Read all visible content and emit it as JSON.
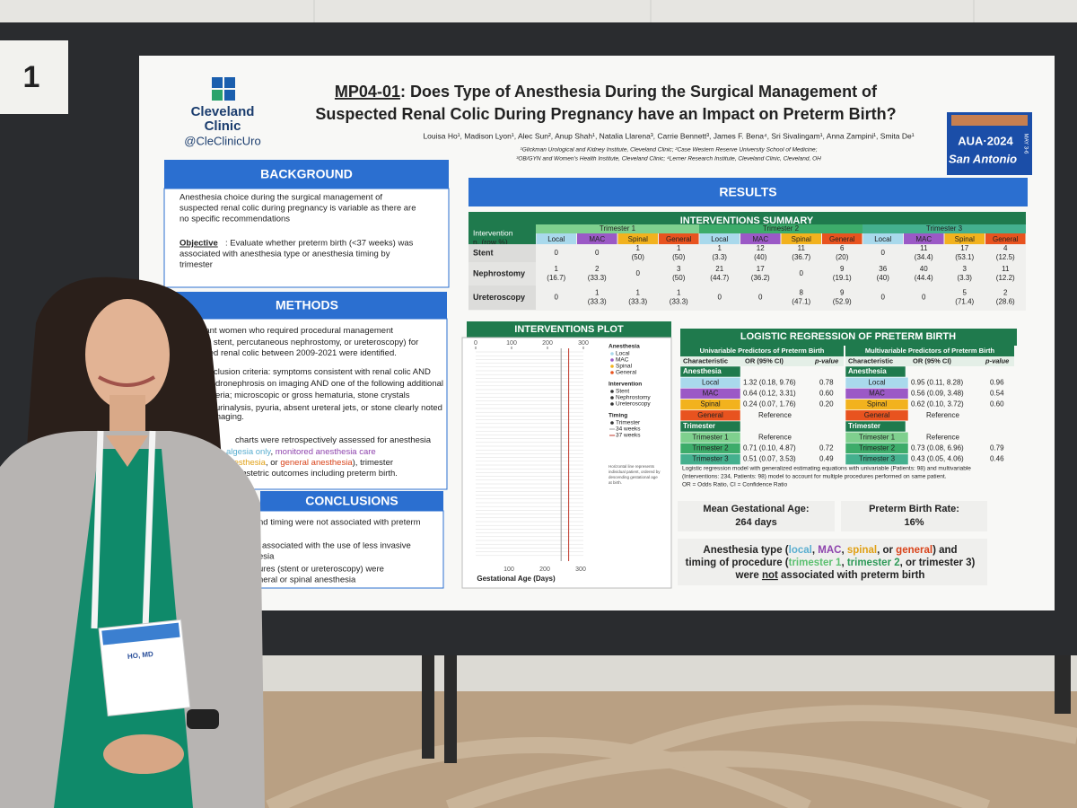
{
  "booth_number": "1",
  "badge_name": "HO, MD",
  "poster": {
    "logo": {
      "line1": "Cleveland",
      "line2": "Clinic",
      "handle": "@CleClinicUro"
    },
    "title": {
      "code": "MP04-01",
      "line1": ": Does Type of Anesthesia During the Surgical Management of",
      "line2": "Suspected Renal Colic During Pregnancy have an Impact on Preterm Birth?"
    },
    "authors": "Louisa Ho¹, Madison Lyon¹, Alec Sun², Anup Shah¹, Natalia Llarena³, Carrie Bennett³, James F. Bena⁴, Sri Sivalingam¹, Anna Zampini¹, Smita De¹",
    "affiliations": [
      "¹Glickman Urological and Kidney Institute, Cleveland Clinic; ²Case Western Reserve University School of Medicine;",
      "³OB/GYN and Women's Health Institute, Cleveland Clinic; ⁴Lerner Research Institute, Cleveland Clinic, Cleveland, OH"
    ],
    "conference": {
      "name": "AUA·2024",
      "city": "San Antonio",
      "dates": "MAY 3-6"
    },
    "background": {
      "heading": "BACKGROUND",
      "lines": [
        "Anesthesia choice during the surgical management of",
        "suspected renal colic during pregnancy is variable as there are",
        "no specific recommendations"
      ],
      "objective_label": "Objective",
      "objective_lines": [
        ": Evaluate whether preterm birth (<37 weeks) was",
        "associated with anesthesia type or anesthesia timing by",
        "trimester"
      ]
    },
    "methods": {
      "heading": "METHODS",
      "lines": [
        [
          {
            "text": "Pregnant women who required procedural management",
            "color": "#222222"
          }
        ],
        [
          {
            "text": "ureteral stent, percutaneous nephrostomy, or ureteroscopy) for",
            "color": "#222222"
          }
        ],
        [
          {
            "text": "suspected renal colic between 2009-2021 were identified.",
            "color": "#222222"
          }
        ],
        [
          {
            "text": "clusion criteria",
            "color": "#222222"
          },
          {
            "text": ": symptoms consistent with renal colic AND",
            "color": "#222222"
          }
        ],
        [
          {
            "text": "dronephrosis on imaging AND one of the following additional",
            "color": "#222222"
          }
        ],
        [
          {
            "text": "eria; microscopic or gross hematuria, stone crystals",
            "color": "#222222"
          }
        ],
        [
          {
            "text": "urinalysis, pyuria, absent ureteral jets, or stone clearly noted",
            "color": "#222222"
          }
        ],
        [
          {
            "text": "imaging.",
            "color": "#222222"
          }
        ],
        [
          {
            "text": "charts were retrospectively assessed for anesthesia",
            "color": "#222222"
          }
        ],
        [
          {
            "text": "algesia only",
            "color": "#5aaed0"
          },
          {
            "text": ", ",
            "color": "#222222"
          },
          {
            "text": "monitored anesthesia care",
            "color": "#8e44ad"
          }
        ],
        [
          {
            "text": "anesthesia",
            "color": "#e0a015"
          },
          {
            "text": ", or ",
            "color": "#222222"
          },
          {
            "text": "general anesthesia",
            "color": "#d9431a"
          },
          {
            "text": "), trimester",
            "color": "#222222"
          }
        ],
        [
          {
            "text": "d obstetric outcomes including preterm birth.",
            "color": "#222222"
          }
        ]
      ]
    },
    "conclusions": {
      "heading": "CONCLUSIONS",
      "lines": [
        "nd timing were not associated with preterm",
        "associated with the use of less invasive",
        "esia",
        "ures (stent or ureteroscopy) were",
        "neral or spinal anesthesia"
      ]
    },
    "results": {
      "heading": "RESULTS",
      "interventions_summary": {
        "heading": "INTERVENTIONS SUMMARY",
        "corner": [
          "Intervention",
          "n, (row %)"
        ],
        "trimesters": [
          {
            "name": "Trimester 1",
            "color": "#7fd08e"
          },
          {
            "name": "Trimester 2",
            "color": "#3dac6a"
          },
          {
            "name": "Trimester 3",
            "color": "#44b08e"
          }
        ],
        "anesthesia": [
          {
            "name": "Local",
            "color": "#a9d9ec"
          },
          {
            "name": "MAC",
            "color": "#9b59c6"
          },
          {
            "name": "Spinal",
            "color": "#f2b21e"
          },
          {
            "name": "General",
            "color": "#e8531f"
          }
        ],
        "rows": [
          {
            "label": "Stent",
            "cells": [
              [
                "0"
              ],
              [
                "0"
              ],
              [
                "1",
                "(50)"
              ],
              [
                "1",
                "(50)"
              ],
              [
                "1",
                "(3.3)"
              ],
              [
                "12",
                "(40)"
              ],
              [
                "11",
                "(36.7)"
              ],
              [
                "6",
                "(20)"
              ],
              [
                "0"
              ],
              [
                "11",
                "(34.4)"
              ],
              [
                "17",
                "(53.1)"
              ],
              [
                "4",
                "(12.5)"
              ]
            ]
          },
          {
            "label": "Nephrostomy",
            "cells": [
              [
                "1",
                "(16.7)"
              ],
              [
                "2",
                "(33.3)"
              ],
              [
                "0"
              ],
              [
                "3",
                "(50)"
              ],
              [
                "21",
                "(44.7)"
              ],
              [
                "17",
                "(36.2)"
              ],
              [
                "0"
              ],
              [
                "9",
                "(19.1)"
              ],
              [
                "36",
                "(40)"
              ],
              [
                "40",
                "(44.4)"
              ],
              [
                "3",
                "(3.3)"
              ],
              [
                "11",
                "(12.2)"
              ]
            ]
          },
          {
            "label": "Ureteroscopy",
            "cells": [
              [
                "0"
              ],
              [
                "1",
                "(33.3)"
              ],
              [
                "1",
                "(33.3)"
              ],
              [
                "1",
                "(33.3)"
              ],
              [
                "0"
              ],
              [
                "0"
              ],
              [
                "8",
                "(47.1)"
              ],
              [
                "9",
                "(52.9)"
              ],
              [
                "0"
              ],
              [
                "0"
              ],
              [
                "5",
                "(71.4)"
              ],
              [
                "2",
                "(28.6)"
              ]
            ]
          }
        ]
      },
      "interventions_plot": {
        "heading": "INTERVENTIONS PLOT",
        "xlim": [
          0,
          300
        ],
        "xticks": [
          0,
          100,
          200,
          300
        ],
        "xlabel": "Gestational Age (Days)",
        "reference_lines": [
          {
            "label": "34 weeks",
            "value": 238,
            "color": "#999999"
          },
          {
            "label": "37 weeks",
            "value": 259,
            "color": "#c0392b"
          }
        ],
        "legend": [
          {
            "title": "Anesthesia",
            "items": [
              {
                "label": "Local",
                "color": "#a9d9ec"
              },
              {
                "label": "MAC",
                "color": "#9b59c6"
              },
              {
                "label": "Spinal",
                "color": "#f2b21e"
              },
              {
                "label": "General",
                "color": "#e8531f"
              }
            ]
          },
          {
            "title": "Intervention",
            "items": [
              {
                "label": "Stent",
                "color": "#333333"
              },
              {
                "label": "Nephrostomy",
                "color": "#333333"
              },
              {
                "label": "Ureteroscopy",
                "color": "#333333"
              }
            ]
          },
          {
            "title": "Timing",
            "items": [
              {
                "label": "Trimester",
                "color": "#333333"
              }
            ]
          }
        ],
        "note": [
          "Horizontal line represents",
          "individual patient, ordered by",
          "descending gestational age",
          "at birth."
        ]
      },
      "regression": {
        "heading": "LOGISTIC REGRESSION OF PRETERM BIRTH",
        "tables": [
          {
            "title": "Univariable Predictors of Preterm Birth",
            "columns": [
              "Characteristic",
              "OR (95% CI)",
              "p-value"
            ],
            "rows": [
              {
                "label": "Anesthesia",
                "color": "#1f7a4d"
              },
              {
                "label": "Local",
                "color": "#a9d9ec",
                "or": "1.32 (0.18, 9.76)",
                "p": "0.78"
              },
              {
                "label": "MAC",
                "color": "#9b59c6",
                "or": "0.64 (0.12, 3.31)",
                "p": "0.60"
              },
              {
                "label": "Spinal",
                "color": "#f2b21e",
                "or": "0.24 (0.07, 1.76)",
                "p": "0.20"
              },
              {
                "label": "General",
                "color": "#e8531f",
                "or": "Reference"
              },
              {
                "label": "Trimester",
                "color": "#1f7a4d"
              },
              {
                "label": "Trimester 1",
                "color": "#7fd08e",
                "or": "Reference"
              },
              {
                "label": "Trimester 2",
                "color": "#3dac6a",
                "or": "0.71 (0.10, 4.87)",
                "p": "0.72"
              },
              {
                "label": "Trimester 3",
                "color": "#44b08e",
                "or": "0.51 (0.07, 3.53)",
                "p": "0.49"
              }
            ]
          },
          {
            "title": "Multivariable Predictors of Preterm Birth",
            "columns": [
              "Characteristic",
              "OR (95% CI)",
              "p-value"
            ],
            "rows": [
              {
                "label": "Anesthesia",
                "color": "#1f7a4d"
              },
              {
                "label": "Local",
                "color": "#a9d9ec",
                "or": "0.95 (0.11, 8.28)",
                "p": "0.96"
              },
              {
                "label": "MAC",
                "color": "#9b59c6",
                "or": "0.56 (0.09, 3.48)",
                "p": "0.54"
              },
              {
                "label": "Spinal",
                "color": "#f2b21e",
                "or": "0.62 (0.10, 3.72)",
                "p": "0.60"
              },
              {
                "label": "General",
                "color": "#e8531f",
                "or": "Reference"
              },
              {
                "label": "Trimester",
                "color": "#1f7a4d"
              },
              {
                "label": "Trimester 1",
                "color": "#7fd08e",
                "or": "Reference"
              },
              {
                "label": "Trimester 2",
                "color": "#3dac6a",
                "or": "0.73 (0.08, 6.96)",
                "p": "0.79"
              },
              {
                "label": "Trimester 3",
                "color": "#44b08e",
                "or": "0.43 (0.05, 4.06)",
                "p": "0.46"
              }
            ]
          }
        ],
        "footnote": [
          "Logistic regression model with generalized estimating equations with univariable (Patients: 98) and multivariable",
          "(Interventions: 234, Patients: 98) model to account for multiple procedures performed on same patient.",
          "OR = Odds Ratio, CI = Confidence Ratio"
        ]
      },
      "stats": [
        {
          "label": "Mean Gestational Age:",
          "value": "264 days"
        },
        {
          "label": "Preterm Birth Rate:",
          "value": "16%"
        }
      ],
      "statement": [
        [
          {
            "text": "Anesthesia type (",
            "color": "#222222"
          },
          {
            "text": "local",
            "color": "#5aaed0"
          },
          {
            "text": ", ",
            "color": "#222222"
          },
          {
            "text": "MAC",
            "color": "#8e44ad"
          },
          {
            "text": ", ",
            "color": "#222222"
          },
          {
            "text": "spinal",
            "color": "#e0a015"
          },
          {
            "text": ", or ",
            "color": "#222222"
          },
          {
            "text": "general",
            "color": "#d9431a"
          },
          {
            "text": ") and",
            "color": "#222222"
          }
        ],
        [
          {
            "text": "timing of procedure (",
            "color": "#222222"
          },
          {
            "text": "trimester 1",
            "color": "#5cc070"
          },
          {
            "text": ", ",
            "color": "#222222"
          },
          {
            "text": "trimester 2",
            "color": "#2e9a58"
          },
          {
            "text": ", or trimester 3)",
            "color": "#222222"
          }
        ],
        [
          {
            "text": "were ",
            "color": "#222222"
          },
          {
            "text": "not",
            "color": "#222222"
          },
          {
            "text": " associated with preterm birth",
            "color": "#222222"
          }
        ]
      ]
    }
  }
}
